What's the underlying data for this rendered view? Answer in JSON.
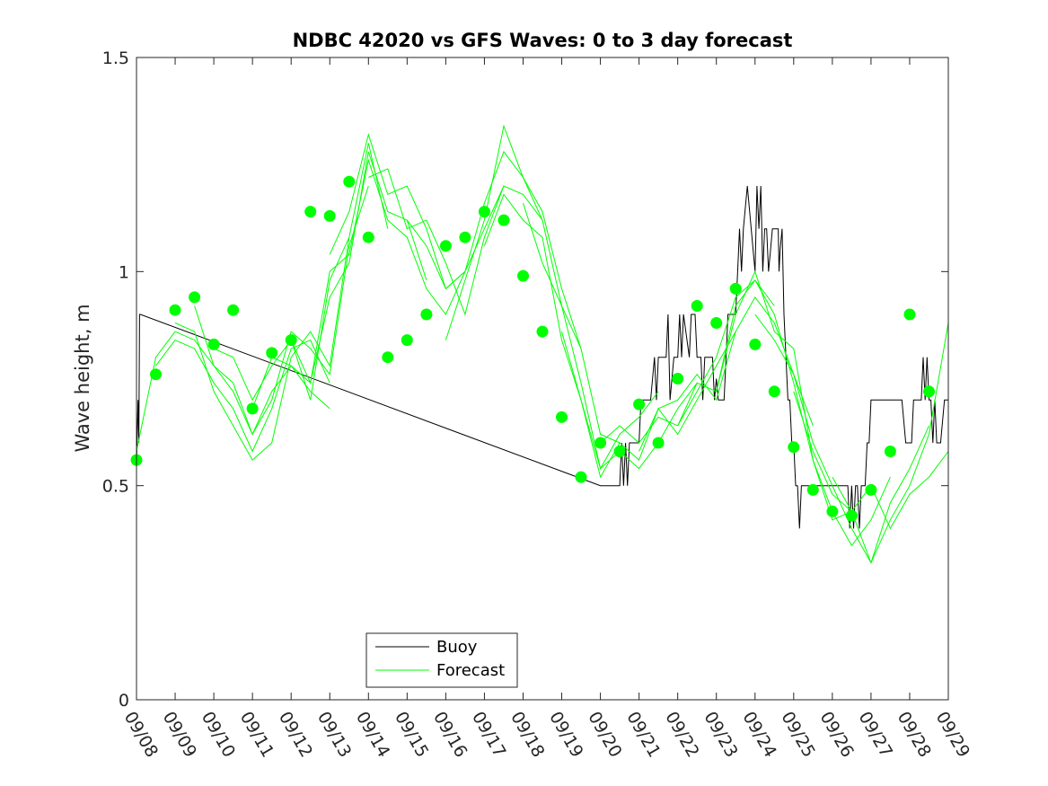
{
  "chart_data": {
    "type": "line",
    "title": "NDBC 42020 vs GFS Waves: 0 to 3 day forecast",
    "xlabel": "",
    "ylabel": "Wave height, m",
    "ylim": [
      0,
      1.5
    ],
    "xlim": [
      0,
      21
    ],
    "yticks": [
      0,
      0.5,
      1,
      1.5
    ],
    "ytick_labels": [
      "0",
      "0.5",
      "1",
      "1.5"
    ],
    "x_tick_labels": [
      "09/08",
      "09/09",
      "09/10",
      "09/11",
      "09/12",
      "09/13",
      "09/14",
      "09/15",
      "09/16",
      "09/17",
      "09/18",
      "09/19",
      "09/20",
      "09/21",
      "09/22",
      "09/23",
      "09/24",
      "09/25",
      "09/26",
      "09/27",
      "09/28",
      "09/29"
    ],
    "colors": {
      "buoy": "#000000",
      "forecast": "#00ff00",
      "axis": "#262626"
    },
    "legend": {
      "location": "bottom-center",
      "entries": [
        "Buoy",
        "Forecast"
      ]
    },
    "series": [
      {
        "name": "Buoy",
        "color": "#000000",
        "x": [
          0,
          0.04,
          0.06,
          0.08,
          0.1,
          12,
          12.5,
          12.55,
          12.6,
          12.65,
          12.7,
          12.75,
          12.8,
          13,
          13.05,
          13.3,
          13.4,
          13.45,
          13.5,
          13.7,
          13.75,
          13.8,
          13.9,
          14,
          14.05,
          14.1,
          14.15,
          14.3,
          14.35,
          14.45,
          14.5,
          14.6,
          14.65,
          14.7,
          14.9,
          14.95,
          15,
          15.05,
          15.2,
          15.25,
          15.3,
          15.35,
          15.5,
          15.55,
          15.6,
          15.65,
          15.7,
          15.8,
          16,
          16.05,
          16.1,
          16.15,
          16.2,
          16.25,
          16.3,
          16.35,
          16.4,
          16.45,
          16.5,
          16.6,
          16.62,
          16.65,
          16.7,
          16.75,
          16.8,
          16.85,
          16.9,
          16.95,
          17,
          17.05,
          17.1,
          17.15,
          17.2,
          18.4,
          18.45,
          18.5,
          18.55,
          18.6,
          18.65,
          18.7,
          18.75,
          18.8,
          18.85,
          18.9,
          18.95,
          19,
          19.05,
          19.1,
          19.5,
          19.8,
          19.9,
          19.95,
          20,
          20.05,
          20.1,
          20.3,
          20.35,
          20.4,
          20.45,
          20.5,
          20.55,
          20.6,
          20.65,
          20.7,
          20.8,
          20.9,
          21
        ],
        "y": [
          0.55,
          0.7,
          0.6,
          0.9,
          0.9,
          0.5,
          0.5,
          0.6,
          0.5,
          0.6,
          0.5,
          0.6,
          0.6,
          0.6,
          0.7,
          0.7,
          0.8,
          0.7,
          0.8,
          0.8,
          0.9,
          0.7,
          0.8,
          0.8,
          0.9,
          0.8,
          0.9,
          0.8,
          0.9,
          0.9,
          0.8,
          0.8,
          0.7,
          0.8,
          0.8,
          0.7,
          0.75,
          0.7,
          0.7,
          0.8,
          0.9,
          0.9,
          0.9,
          1.0,
          1.1,
          1.0,
          1.1,
          1.2,
          1.0,
          1.2,
          1.1,
          1.2,
          1.0,
          1.1,
          1.1,
          1.0,
          1.05,
          1.1,
          1.1,
          1.1,
          1.0,
          1.05,
          1.1,
          0.9,
          0.8,
          0.7,
          0.7,
          0.6,
          0.6,
          0.5,
          0.5,
          0.4,
          0.5,
          0.5,
          0.4,
          0.5,
          0.4,
          0.5,
          0.5,
          0.4,
          0.5,
          0.5,
          0.5,
          0.6,
          0.6,
          0.7,
          0.7,
          0.7,
          0.7,
          0.7,
          0.6,
          0.6,
          0.6,
          0.6,
          0.7,
          0.7,
          0.8,
          0.7,
          0.8,
          0.7,
          0.7,
          0.6,
          0.7,
          0.6,
          0.6,
          0.7,
          0.7
        ]
      }
    ],
    "forecast_lines": [
      {
        "name": "Forecast",
        "x": [
          0,
          0.5,
          1,
          1.5,
          2,
          2.5,
          3,
          3.5,
          4,
          4.5,
          5
        ],
        "y": [
          0.58,
          0.8,
          0.86,
          0.84,
          0.78,
          0.74,
          0.62,
          0.72,
          0.78,
          0.72,
          0.68
        ]
      },
      {
        "name": "Forecast",
        "x": [
          0.5,
          1,
          1.5,
          2,
          2.5,
          3,
          3.5,
          4,
          4.5,
          5
        ],
        "y": [
          0.78,
          0.84,
          0.82,
          0.74,
          0.68,
          0.58,
          0.68,
          0.82,
          0.84,
          0.74
        ]
      },
      {
        "name": "Forecast",
        "x": [
          1,
          1.5,
          2,
          2.5,
          3,
          3.5,
          4,
          4.5,
          5,
          5.5
        ],
        "y": [
          0.88,
          0.86,
          0.72,
          0.64,
          0.56,
          0.6,
          0.8,
          0.86,
          0.78,
          1.08
        ]
      },
      {
        "name": "Forecast",
        "x": [
          1.5,
          2,
          2.5,
          3,
          3.5,
          4,
          4.5,
          5,
          5.5,
          6
        ],
        "y": [
          0.92,
          0.78,
          0.72,
          0.62,
          0.7,
          0.86,
          0.82,
          0.76,
          1.06,
          1.2
        ]
      },
      {
        "name": "Forecast",
        "x": [
          2,
          2.5,
          3,
          3.5,
          4,
          4.5,
          5,
          5.5,
          6,
          6.5
        ],
        "y": [
          0.82,
          0.8,
          0.7,
          0.78,
          0.84,
          0.7,
          0.98,
          1.08,
          1.3,
          1.1
        ]
      },
      {
        "name": "Forecast",
        "x": [
          3,
          3.5,
          4,
          4.5,
          5,
          5.5,
          6,
          6.5,
          7,
          7.5
        ],
        "y": [
          0.68,
          0.8,
          0.78,
          0.74,
          0.94,
          1.02,
          1.28,
          1.14,
          1.12,
          0.98
        ]
      },
      {
        "name": "Forecast",
        "x": [
          4,
          4.5,
          5,
          5.5,
          6,
          6.5,
          7,
          7.5,
          8,
          8.5
        ],
        "y": [
          0.84,
          0.74,
          1.0,
          1.04,
          1.26,
          1.12,
          1.08,
          0.96,
          0.9,
          1.0
        ]
      },
      {
        "name": "Forecast",
        "x": [
          5,
          5.5,
          6,
          6.5,
          7,
          7.5,
          8,
          8.5,
          9,
          9.5
        ],
        "y": [
          1.04,
          1.14,
          1.32,
          1.18,
          1.2,
          1.1,
          0.96,
          1.0,
          1.1,
          1.2
        ]
      },
      {
        "name": "Forecast",
        "x": [
          6,
          6.5,
          7,
          7.5,
          8,
          8.5,
          9,
          9.5,
          10,
          10.5
        ],
        "y": [
          1.22,
          1.24,
          1.1,
          1.12,
          1.02,
          0.9,
          1.08,
          1.2,
          1.18,
          1.12
        ]
      },
      {
        "name": "Forecast",
        "x": [
          7,
          7.5,
          8,
          8.5,
          9,
          9.5,
          10,
          10.5,
          11,
          11.5
        ],
        "y": [
          1.12,
          1.06,
          0.96,
          1.0,
          1.16,
          1.28,
          1.22,
          1.14,
          0.96,
          0.82
        ]
      },
      {
        "name": "Forecast",
        "x": [
          8,
          8.5,
          9,
          9.5,
          10,
          10.5,
          11,
          11.5,
          12,
          12.5
        ],
        "y": [
          0.84,
          0.98,
          1.12,
          1.34,
          1.22,
          1.12,
          0.92,
          0.82,
          0.62,
          0.6
        ]
      },
      {
        "name": "Forecast",
        "x": [
          9,
          9.5,
          10,
          10.5,
          11,
          11.5,
          12,
          12.5,
          13,
          13.5
        ],
        "y": [
          1.06,
          1.18,
          1.12,
          1.08,
          0.84,
          0.7,
          0.54,
          0.62,
          0.66,
          0.72
        ]
      },
      {
        "name": "Forecast",
        "x": [
          10,
          10.5,
          11,
          11.5,
          12,
          12.5,
          13,
          13.5,
          14,
          14.5
        ],
        "y": [
          1.16,
          1.02,
          0.92,
          0.74,
          0.54,
          0.58,
          0.54,
          0.6,
          0.68,
          0.74
        ]
      },
      {
        "name": "Forecast",
        "x": [
          11,
          11.5,
          12,
          12.5,
          13,
          13.5,
          14,
          14.5,
          15,
          15.5
        ],
        "y": [
          0.86,
          0.7,
          0.52,
          0.6,
          0.56,
          0.68,
          0.62,
          0.7,
          0.78,
          0.86
        ]
      },
      {
        "name": "Forecast",
        "x": [
          12,
          12.5,
          13,
          13.5,
          14,
          14.5,
          15,
          15.5,
          16,
          16.5
        ],
        "y": [
          0.6,
          0.64,
          0.6,
          0.66,
          0.64,
          0.74,
          0.72,
          0.92,
          0.98,
          0.92
        ]
      },
      {
        "name": "Forecast",
        "x": [
          13,
          13.5,
          14,
          14.5,
          15,
          15.5,
          16,
          16.5,
          17,
          17.5
        ],
        "y": [
          0.58,
          0.68,
          0.7,
          0.76,
          0.7,
          0.86,
          0.94,
          0.88,
          0.76,
          0.64
        ]
      },
      {
        "name": "Forecast",
        "x": [
          14,
          14.5,
          15,
          15.5,
          16,
          16.5,
          17,
          17.5,
          18,
          18.5
        ],
        "y": [
          0.64,
          0.72,
          0.8,
          0.94,
          0.98,
          0.9,
          0.74,
          0.56,
          0.42,
          0.44
        ]
      },
      {
        "name": "Forecast",
        "x": [
          15,
          15.5,
          16,
          16.5,
          17,
          17.5,
          18,
          18.5,
          19,
          19.5
        ],
        "y": [
          0.72,
          0.9,
          1.0,
          0.86,
          0.82,
          0.56,
          0.44,
          0.36,
          0.42,
          0.52
        ]
      },
      {
        "name": "Forecast",
        "x": [
          16,
          16.5,
          17,
          17.5,
          18,
          18.5,
          19,
          19.5,
          20,
          20.5
        ],
        "y": [
          0.9,
          0.84,
          0.76,
          0.6,
          0.5,
          0.4,
          0.32,
          0.46,
          0.54,
          0.64
        ]
      },
      {
        "name": "Forecast",
        "x": [
          17,
          17.5,
          18,
          18.5,
          19,
          19.5,
          20,
          20.5,
          21
        ],
        "y": [
          0.72,
          0.58,
          0.48,
          0.44,
          0.32,
          0.42,
          0.5,
          0.62,
          0.88
        ]
      },
      {
        "name": "Forecast",
        "x": [
          18,
          18.5,
          19,
          19.5,
          20,
          20.5,
          21
        ],
        "y": [
          0.52,
          0.44,
          0.5,
          0.4,
          0.48,
          0.52,
          0.58
        ]
      }
    ],
    "forecast_markers": {
      "name": "Forecast",
      "x": [
        0,
        0.5,
        1,
        1.5,
        2,
        2.5,
        3,
        3.5,
        4,
        4.5,
        5,
        5.5,
        6,
        6.5,
        7,
        7.5,
        8,
        8.5,
        9,
        9.5,
        10,
        10.5,
        11,
        11.5,
        12,
        12.5,
        13,
        13.5,
        14,
        14.5,
        15,
        15.5,
        16,
        16.5,
        17,
        17.5,
        18,
        18.5,
        19,
        19.5,
        20,
        20.5
      ],
      "y": [
        0.56,
        0.76,
        0.91,
        0.94,
        0.83,
        0.91,
        0.68,
        0.81,
        0.84,
        1.14,
        1.13,
        1.21,
        1.08,
        0.8,
        0.84,
        0.9,
        1.06,
        1.08,
        1.14,
        1.12,
        0.99,
        0.86,
        0.66,
        0.52,
        0.6,
        0.58,
        0.69,
        0.6,
        0.75,
        0.92,
        0.88,
        0.96,
        0.83,
        0.72,
        0.59,
        0.49,
        0.44,
        0.43,
        0.49,
        0.58,
        0.9,
        0.72
      ]
    }
  }
}
